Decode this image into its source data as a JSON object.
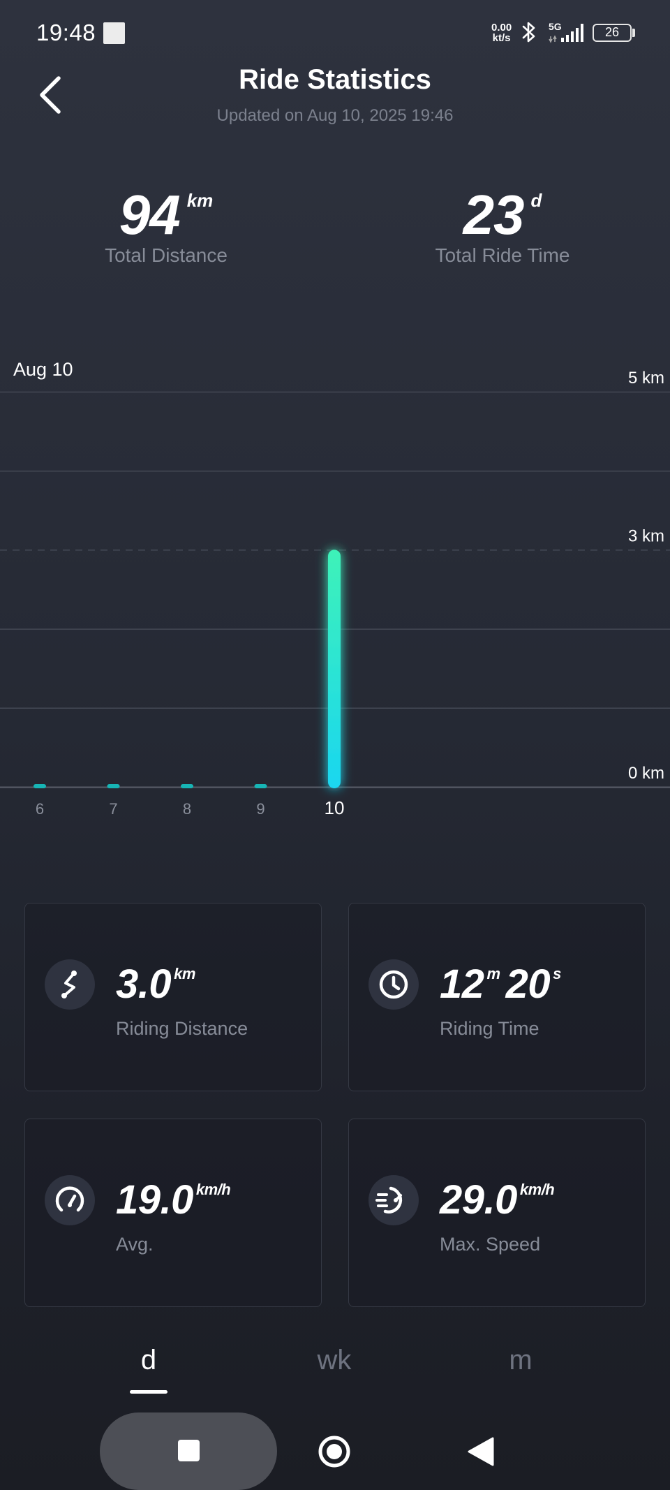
{
  "status_bar": {
    "time": "19:48",
    "net_speed_value": "0.00",
    "net_speed_unit": "kt/s",
    "network": "5G",
    "battery": "26"
  },
  "header": {
    "title": "Ride Statistics",
    "updated": "Updated on Aug 10, 2025 19:46"
  },
  "totals": {
    "distance": {
      "value": "94",
      "unit": "km",
      "label": "Total Distance"
    },
    "ride_time": {
      "value": "23",
      "unit": "d",
      "label": "Total Ride Time"
    }
  },
  "chart": {
    "date_label": "Aug 10"
  },
  "chart_data": {
    "type": "bar",
    "categories": [
      "6",
      "7",
      "8",
      "9",
      "10"
    ],
    "values": [
      0,
      0,
      0,
      0,
      3.0
    ],
    "selected_category": "10",
    "title": "",
    "xlabel": "",
    "ylabel": "",
    "ylim": [
      0,
      5
    ],
    "y_tick_labels": [
      {
        "value": 5,
        "label": "5 km"
      },
      {
        "value": 3,
        "label": "3 km"
      },
      {
        "value": 0,
        "label": "0 km"
      }
    ],
    "grid": true,
    "bar_color_top": "#3ef2b8",
    "bar_color_bottom": "#1ad6f0"
  },
  "stats": {
    "riding_distance": {
      "value": "3.0",
      "unit": "km",
      "label": "Riding Distance",
      "icon": "route-icon"
    },
    "riding_time": {
      "minutes": "12",
      "min_unit": "m",
      "seconds": "20",
      "sec_unit": "s",
      "label": "Riding Time",
      "icon": "clock-icon"
    },
    "avg_speed": {
      "value": "19.0",
      "unit": "km/h",
      "label": "Avg.",
      "icon": "speedometer-icon"
    },
    "max_speed": {
      "value": "29.0",
      "unit": "km/h",
      "label": "Max. Speed",
      "icon": "fast-speed-icon"
    }
  },
  "period_tabs": {
    "day": "d",
    "week": "wk",
    "month": "m",
    "active": "d"
  }
}
